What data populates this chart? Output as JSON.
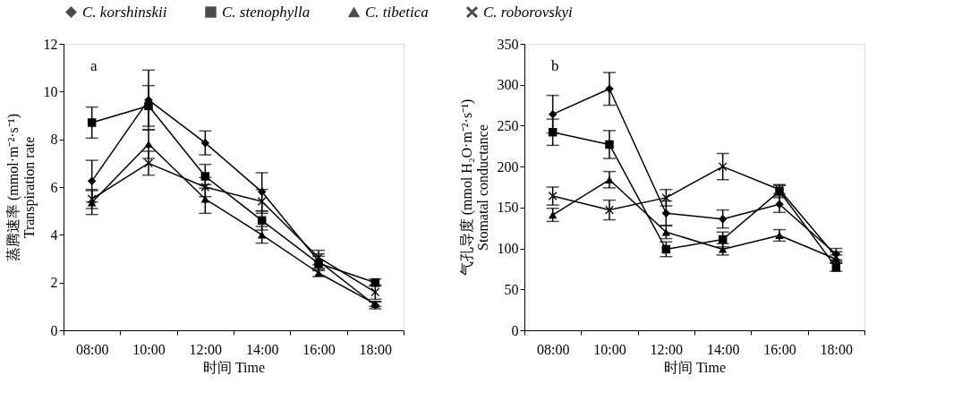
{
  "chart_data": [
    {
      "type": "line",
      "annotations": [
        "a"
      ],
      "xlabel": "时间 Time",
      "ylabel": "蒸腾速率 (mmol·m⁻²·s⁻¹)\nTranspiration rate",
      "categories": [
        "08:00",
        "10:00",
        "12:00",
        "14:00",
        "16:00",
        "18:00"
      ],
      "ylim": [
        0,
        12
      ],
      "yticks": [
        0,
        2,
        4,
        6,
        8,
        10,
        12
      ],
      "grid": false,
      "legend": "top",
      "series": [
        {
          "name": "C. korshinskii",
          "color": "#000000",
          "marker": "diamond",
          "values": [
            6.25,
            9.65,
            7.85,
            5.8,
            2.9,
            1.05
          ],
          "errors": [
            0.87,
            1.25,
            0.5,
            0.8,
            0.3,
            0.15
          ]
        },
        {
          "name": "C. stenophylla",
          "color": "#000000",
          "marker": "square",
          "values": [
            8.7,
            9.4,
            6.45,
            4.6,
            2.8,
            2.0
          ],
          "errors": [
            0.65,
            0.85,
            0.5,
            0.4,
            0.3,
            0.15
          ]
        },
        {
          "name": "C. tibetica",
          "color": "#000000",
          "marker": "triangle",
          "values": [
            5.35,
            7.8,
            5.5,
            4.0,
            2.4,
            1.1
          ],
          "errors": [
            0.5,
            0.6,
            0.6,
            0.35,
            0.15,
            0.1
          ]
        },
        {
          "name": "C. roborovskyi",
          "color": "#000000",
          "marker": "cross",
          "values": [
            5.5,
            7.0,
            6.0,
            5.4,
            3.05,
            1.6
          ],
          "errors": [
            0.4,
            0.5,
            0.4,
            0.5,
            0.3,
            0.3
          ]
        }
      ]
    },
    {
      "type": "line",
      "annotations": [
        "b"
      ],
      "xlabel": "时间 Time",
      "ylabel": "气孔导度 (mmol H₂O·m⁻²·s⁻¹)\nStomatal conductance",
      "categories": [
        "08:00",
        "10:00",
        "12:00",
        "14:00",
        "16:00",
        "18:00"
      ],
      "ylim": [
        0,
        350
      ],
      "yticks": [
        0,
        50,
        100,
        150,
        200,
        250,
        300,
        350
      ],
      "grid": false,
      "legend": "top",
      "series": [
        {
          "name": "C. korshinskii",
          "color": "#000000",
          "marker": "diamond",
          "values": [
            264,
            295,
            143,
            136,
            154,
            93
          ],
          "errors": [
            23,
            20,
            15,
            11,
            10,
            7
          ]
        },
        {
          "name": "C. stenophylla",
          "color": "#000000",
          "marker": "square",
          "values": [
            242,
            227,
            99,
            111,
            170,
            77
          ],
          "errors": [
            16,
            17,
            9,
            9,
            8,
            5
          ]
        },
        {
          "name": "C. tibetica",
          "color": "#000000",
          "marker": "triangle",
          "values": [
            141,
            184,
            120,
            99,
            116,
            87
          ],
          "errors": [
            8,
            10,
            8,
            7,
            7,
            5
          ]
        },
        {
          "name": "C. roborovskyi",
          "color": "#000000",
          "marker": "cross",
          "values": [
            164,
            147,
            162,
            200,
            172,
            90
          ],
          "errors": [
            11,
            12,
            10,
            16,
            5,
            6
          ]
        }
      ]
    }
  ]
}
